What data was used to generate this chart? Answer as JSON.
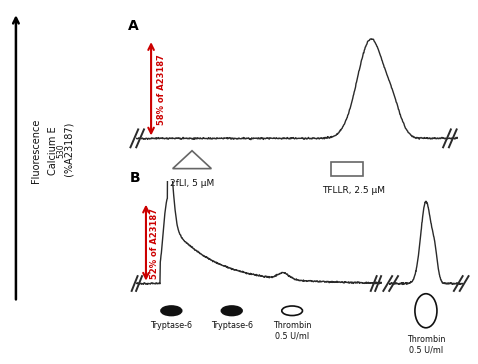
{
  "panel_A_label": "A",
  "panel_B_label": "B",
  "annotation_58": "58% of A23187",
  "annotation_52": "52% of A23187",
  "label_2fli": "2fLI, 5 μM",
  "label_tfllr": "TFLLR, 2.5 μM",
  "label_tryptase1": "Tryptase-6",
  "label_tryptase2": "Tryptase-6",
  "label_thrombin1": "Thrombin\n0.5 U/ml",
  "label_thrombin2": "Thrombin\n0.5 U/ml",
  "ylabel_line1": "Fluorescence",
  "ylabel_line2": "Calcium E",
  "ylabel_sub": "530",
  "ylabel_line3": " (%A23187)",
  "arrow_color": "#cc0000",
  "line_color": "#2a2a2a",
  "text_color": "#111111",
  "marker_color": "#111111"
}
